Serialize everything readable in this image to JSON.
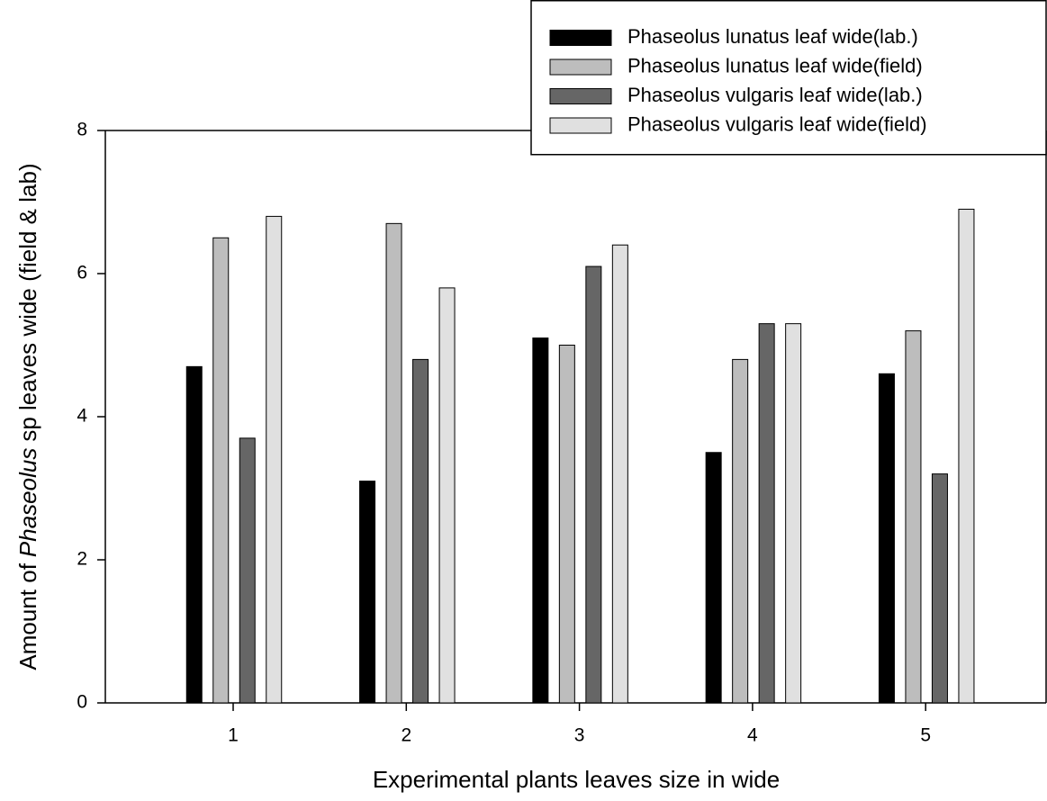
{
  "chart_data": {
    "type": "bar",
    "xlabel": "Experimental plants leaves size in wide",
    "ylabel_parts": [
      "Amount of",
      "Phaseolus",
      "sp leaves wide (field & lab)"
    ],
    "categories": [
      "1",
      "2",
      "3",
      "4",
      "5"
    ],
    "series": [
      {
        "name": "Phaseolus lunatus leaf wide(lab.)",
        "color": "#000000",
        "values": [
          4.7,
          3.1,
          5.1,
          3.5,
          4.6
        ]
      },
      {
        "name": "Phaseolus lunatus leaf wide(field)",
        "color": "#bdbdbd",
        "values": [
          6.5,
          6.7,
          5.0,
          4.8,
          5.2
        ]
      },
      {
        "name": "Phaseolus vulgaris leaf wide(lab.)",
        "color": "#666666",
        "values": [
          3.7,
          4.8,
          6.1,
          5.3,
          3.2
        ]
      },
      {
        "name": "Phaseolus vulgaris leaf wide(field)",
        "color": "#e0e0e0",
        "values": [
          6.8,
          5.8,
          6.4,
          5.3,
          6.9
        ]
      }
    ],
    "ylim": [
      0,
      8
    ],
    "yticks": [
      0,
      2,
      4,
      6,
      8
    ],
    "grid": false,
    "legend": "top-right"
  }
}
